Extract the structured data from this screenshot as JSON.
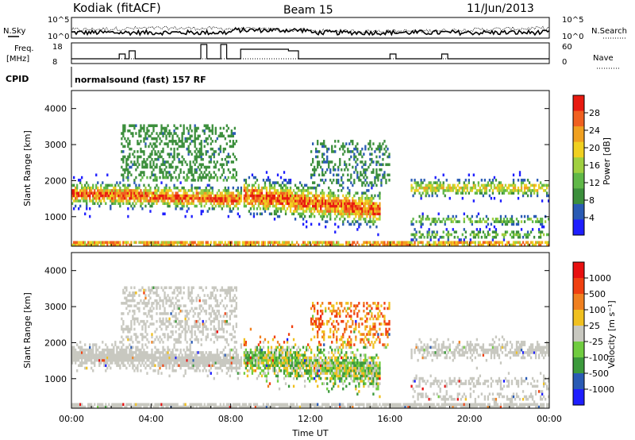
{
  "header": {
    "station": "Kodiak (fitACF)",
    "beam": "Beam 15",
    "date": "11/Jun/2013"
  },
  "timeseries": {
    "noise_left_label": "N.Sky",
    "noise_right_label": "N.Search",
    "noise_left_ticks": [
      "10^5",
      "10^0"
    ],
    "noise_right_ticks": [
      "10^5",
      "10^0"
    ],
    "freq_left_label_1": "Freq.",
    "freq_left_label_2": "[MHz]",
    "freq_right_label": "Nave",
    "freq_left_ticks": [
      "18",
      "8"
    ],
    "freq_right_ticks": [
      "60",
      "0"
    ],
    "cpid_label": "CPID",
    "cpid_text": "normalsound (fast) 157 RF"
  },
  "chart_data": [
    {
      "type": "heatmap",
      "name": "power",
      "ylabel": "Slant Range [km]",
      "yticks": [
        "4000",
        "3000",
        "2000",
        "1000"
      ],
      "ylim": [
        180,
        4500
      ],
      "colorbar_label": "Power [dB]",
      "colorbar_ticks": [
        "28",
        "24",
        "20",
        "16",
        "12",
        "8",
        "4"
      ],
      "colorbar_range": [
        0,
        32
      ],
      "colors": [
        "#1e1eff",
        "#2a5bb4",
        "#3c8f3c",
        "#60b848",
        "#a0d040",
        "#f0d020",
        "#f0a020",
        "#f06020",
        "#e81a10"
      ]
    },
    {
      "type": "heatmap",
      "name": "velocity",
      "ylabel": "Slant Range [km]",
      "yticks": [
        "4000",
        "3000",
        "2000",
        "1000"
      ],
      "ylim": [
        180,
        4500
      ],
      "colorbar_label": "Velocity [m s⁻¹]",
      "colorbar_ticks": [
        "1000",
        "500",
        "100",
        "25",
        "-25",
        "-100",
        "-500",
        "-1000"
      ],
      "colors": [
        "#1e1eff",
        "#2a5bb4",
        "#3c9a3c",
        "#70cc40",
        "#c8c8c0",
        "#f0c020",
        "#f08020",
        "#f04010",
        "#e81010"
      ]
    }
  ],
  "x_axis": {
    "ticks": [
      "00:00",
      "04:00",
      "08:00",
      "12:00",
      "16:00",
      "20:00",
      "00:00"
    ],
    "label": "Time UT"
  }
}
